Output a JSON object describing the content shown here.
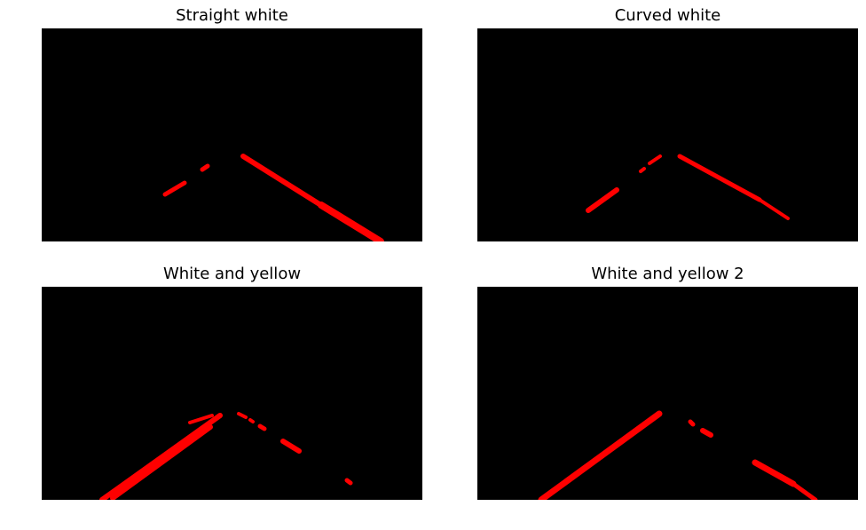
{
  "figure": {
    "panels": [
      {
        "title": "Straight white"
      },
      {
        "title": "Curved white"
      },
      {
        "title": "White and yellow"
      },
      {
        "title": "White and yellow 2"
      }
    ],
    "colors": {
      "background": "#000000",
      "lane": "#ff0000"
    }
  }
}
